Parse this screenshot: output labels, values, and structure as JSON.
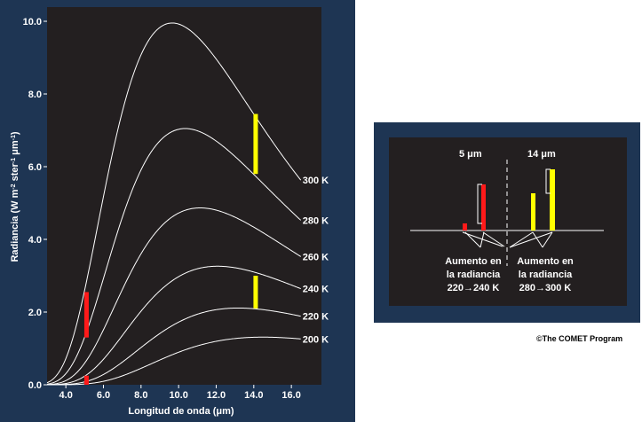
{
  "chart_data": {
    "type": "line",
    "xlabel": "Longitud de onda (μm)",
    "ylabel_parts": {
      "a": "Radiancia (W m",
      "b": "-2",
      "c": " ster",
      "d": "-1",
      "e": "  μm",
      "f": "-1",
      "g": ")"
    },
    "xlim": [
      3.0,
      17.6
    ],
    "ylim": [
      0.0,
      10.0
    ],
    "x_ticks": [
      "4.0",
      "6.0",
      "8.0",
      "10.0",
      "12.0",
      "14.0",
      "16.0"
    ],
    "x_tick_values": [
      4,
      6,
      8,
      10,
      12,
      14,
      16
    ],
    "y_ticks": [
      "0.0",
      "2.0",
      "4.0",
      "6.0",
      "8.0",
      "10.0"
    ],
    "y_tick_values": [
      0,
      2,
      4,
      6,
      8,
      10
    ],
    "series": [
      {
        "name": "200 K",
        "temperature": 200,
        "end_value": 1.3
      },
      {
        "name": "220 K",
        "temperature": 220,
        "end_value": 1.9
      },
      {
        "name": "240 K",
        "temperature": 240,
        "end_value": 2.6
      },
      {
        "name": "260 K",
        "temperature": 260,
        "end_value": 3.5
      },
      {
        "name": "280 K",
        "temperature": 280,
        "end_value": 4.6
      },
      {
        "name": "300 K",
        "temperature": 300,
        "end_value": 5.8
      }
    ],
    "highlight_bars": [
      {
        "wavelength": 5.1,
        "from": 0.0,
        "to": 0.25,
        "color": "#ff1a1a"
      },
      {
        "wavelength": 5.1,
        "from": 1.3,
        "to": 2.55,
        "color": "#ff1a1a"
      },
      {
        "wavelength": 14.1,
        "from": 2.1,
        "to": 3.0,
        "color": "#ffff00"
      },
      {
        "wavelength": 14.1,
        "from": 5.8,
        "to": 7.45,
        "color": "#ffff00"
      }
    ]
  },
  "inset": {
    "label_5um": "5 μm",
    "label_14um": "14 μm",
    "left_caption": [
      "Aumento en",
      "la radiancia",
      "220→240 K"
    ],
    "right_caption": [
      "Aumento en",
      "la radiancia",
      "280→300 K"
    ],
    "colors": {
      "red": "#ff1a1a",
      "yellow": "#ffff00"
    }
  },
  "credit": "©The COMET Program"
}
